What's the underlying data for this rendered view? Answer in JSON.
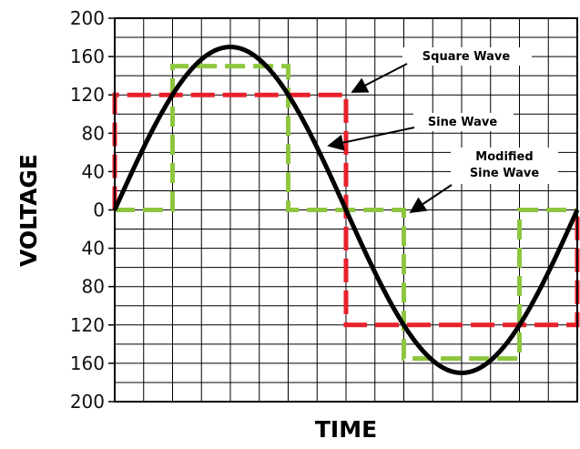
{
  "chart_data": {
    "type": "line",
    "title": "",
    "xlabel": "TIME",
    "ylabel": "VOLTAGE",
    "ylim": [
      -200,
      200
    ],
    "y_ticks": [
      200,
      160,
      120,
      80,
      40,
      0,
      -40,
      -80,
      -120,
      -160,
      -200
    ],
    "y_tick_labels": [
      "200",
      "160",
      "120",
      "80",
      "40",
      "0",
      "40",
      "80",
      "120",
      "160",
      "200"
    ],
    "x_ticks_shown": false,
    "grid": true,
    "period": 1,
    "series": [
      {
        "name": "Sine Wave",
        "color": "#000000",
        "style": "solid",
        "amplitude": 170,
        "shape": "sine"
      },
      {
        "name": "Square Wave",
        "color": "#e8202a",
        "style": "dashed",
        "x": [
          0,
          0,
          0.5,
          0.5,
          1,
          1
        ],
        "y": [
          0,
          120,
          120,
          -120,
          -120,
          0
        ]
      },
      {
        "name": "Modified Sine Wave",
        "color": "#8dc63f",
        "style": "dashed",
        "x": [
          0,
          0.125,
          0.125,
          0.375,
          0.375,
          0.625,
          0.625,
          0.875,
          0.875,
          1
        ],
        "y": [
          0,
          0,
          150,
          150,
          0,
          0,
          -155,
          -155,
          0,
          0
        ]
      }
    ],
    "annotations": [
      {
        "text": "Square Wave",
        "lines": [
          "Square Wave"
        ],
        "target": "Square Wave"
      },
      {
        "text": "Sine Wave",
        "lines": [
          "Sine Wave"
        ],
        "target": "Sine Wave"
      },
      {
        "text": "Modified Sine Wave",
        "lines": [
          "Modified",
          "Sine Wave"
        ],
        "target": "Modified Sine Wave"
      }
    ]
  }
}
